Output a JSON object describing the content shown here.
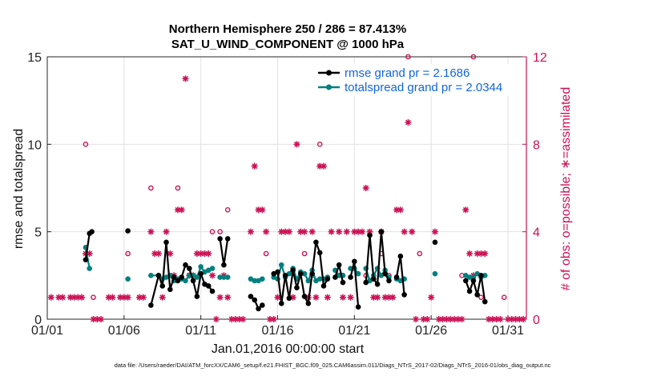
{
  "chart_data": {
    "type": "line",
    "title": "Northern Hemisphere 250 / 286 = 87.413%",
    "subtitle": "SAT_U_WIND_COMPONENT @ 1000 hPa",
    "xlabel": "Jan.01,2016 00:00:00 start",
    "ylabel": "rmse and totalspread",
    "ylabel_right": "# of obs: o=possible; ∗=assimilated",
    "footer": "data file: /Users/raeder/DAI/ATM_forcXX/CAM6_setup/f.e21.FHIST_BGC.f09_025.CAM6assim.011/Diags_NTrS_2017-02/Diags_NTrS_2016-01/obs_diag_output.nc",
    "xlim": [
      1,
      32.2
    ],
    "ylim": [
      0,
      15
    ],
    "ylim_right": [
      0,
      12
    ],
    "xtick_values": [
      1,
      6,
      11,
      16,
      21,
      26,
      31
    ],
    "xtick_labels": [
      "01/01",
      "01/06",
      "01/11",
      "01/16",
      "01/21",
      "01/26",
      "01/31"
    ],
    "ytick_labels": [
      "0",
      "5",
      "10",
      "15"
    ],
    "ytick_labels_right": [
      "0",
      "4",
      "8",
      "12"
    ],
    "grid": true,
    "legend_position": "top-right",
    "colors": {
      "rmse": "#000000",
      "spread": "#00807f",
      "obs": "#cc1155"
    },
    "series": [
      {
        "name": "rmse grand pr = 2.1686",
        "axis": "left",
        "segments": [
          [
            [
              3.5,
              3.4
            ],
            [
              3.75,
              4.9
            ],
            [
              3.9,
              5.0
            ]
          ],
          [
            [
              6.25,
              5.05
            ]
          ],
          [
            [
              7.75,
              0.8
            ],
            [
              8.25,
              2.5
            ],
            [
              8.5,
              1.9
            ],
            [
              8.75,
              4.4
            ],
            [
              9.0,
              1.7
            ],
            [
              9.25,
              2.4
            ],
            [
              9.5,
              2.2
            ],
            [
              9.75,
              2.4
            ],
            [
              10.0,
              3.1
            ],
            [
              10.25,
              2.9
            ],
            [
              10.5,
              2.2
            ],
            [
              10.75,
              1.3
            ],
            [
              11.0,
              2.6
            ],
            [
              11.25,
              2.0
            ],
            [
              11.5,
              1.9
            ],
            [
              11.75,
              1.6
            ]
          ],
          [
            [
              12.25,
              4.6
            ],
            [
              12.5,
              3.1
            ],
            [
              12.75,
              4.6
            ]
          ],
          [
            [
              14.25,
              1.3
            ],
            [
              14.5,
              1.1
            ],
            [
              14.75,
              0.6
            ],
            [
              15.0,
              0.8
            ]
          ],
          [
            [
              15.75,
              2.6
            ],
            [
              16.0,
              2.7
            ],
            [
              16.25,
              0.9
            ],
            [
              16.5,
              2.5
            ],
            [
              16.75,
              1.2
            ],
            [
              17.0,
              2.8
            ],
            [
              17.25,
              1.8
            ],
            [
              17.5,
              2.6
            ],
            [
              17.75,
              1.3
            ],
            [
              18.0,
              0.9
            ],
            [
              18.25,
              2.6
            ],
            [
              18.5,
              4.4
            ],
            [
              18.75,
              3.8
            ],
            [
              19.0,
              1.9
            ],
            [
              19.25,
              2.3
            ]
          ],
          [
            [
              19.75,
              2.4
            ],
            [
              20.0,
              3.1
            ],
            [
              20.25,
              2.1
            ]
          ],
          [
            [
              20.75,
              2.4
            ],
            [
              21.0,
              3.3
            ],
            [
              21.25,
              0.7
            ]
          ],
          [
            [
              21.75,
              2.1
            ],
            [
              22.0,
              4.8
            ],
            [
              22.25,
              2.3
            ],
            [
              22.5,
              2.0
            ],
            [
              22.75,
              5.0
            ],
            [
              23.0,
              2.6
            ],
            [
              23.25,
              2.2
            ]
          ],
          [
            [
              23.75,
              2.4
            ],
            [
              24.0,
              3.6
            ],
            [
              24.25,
              1.4
            ]
          ],
          [
            [
              26.25,
              4.4
            ]
          ],
          [
            [
              28.25,
              2.2
            ],
            [
              28.5,
              1.6
            ],
            [
              28.75,
              2.2
            ],
            [
              29.0,
              1.4
            ],
            [
              29.25,
              2.5
            ],
            [
              29.5,
              1.0
            ]
          ]
        ]
      },
      {
        "name": "totalspread grand pr = 2.0344",
        "axis": "left",
        "segments": [
          [
            [
              3.5,
              4.1
            ],
            [
              3.75,
              2.9
            ]
          ],
          [
            [
              6.25,
              2.3
            ]
          ],
          [
            [
              7.75,
              2.5
            ],
            [
              8.25,
              2.5
            ],
            [
              8.5,
              2.3
            ],
            [
              8.75,
              2.4
            ],
            [
              9.0,
              2.5
            ],
            [
              9.25,
              2.2
            ],
            [
              9.5,
              2.3
            ],
            [
              9.75,
              2.3
            ],
            [
              10.0,
              2.2
            ],
            [
              10.25,
              2.5
            ],
            [
              10.5,
              2.5
            ],
            [
              10.75,
              2.4
            ],
            [
              11.0,
              3.0
            ],
            [
              11.25,
              2.7
            ],
            [
              11.5,
              2.8
            ],
            [
              11.75,
              2.9
            ]
          ],
          [
            [
              12.25,
              2.4
            ],
            [
              12.5,
              2.4
            ],
            [
              12.75,
              2.4
            ]
          ],
          [
            [
              14.25,
              2.3
            ],
            [
              14.5,
              2.2
            ],
            [
              14.75,
              2.2
            ],
            [
              15.0,
              2.3
            ]
          ],
          [
            [
              15.75,
              2.4
            ],
            [
              16.0,
              2.3
            ],
            [
              16.25,
              3.1
            ],
            [
              16.5,
              2.4
            ],
            [
              16.75,
              2.6
            ],
            [
              17.0,
              2.9
            ],
            [
              17.25,
              2.3
            ],
            [
              17.5,
              2.7
            ],
            [
              17.75,
              2.6
            ],
            [
              18.0,
              2.2
            ],
            [
              18.25,
              2.8
            ],
            [
              18.5,
              2.2
            ],
            [
              18.75,
              2.3
            ],
            [
              19.0,
              2.3
            ],
            [
              19.25,
              2.4
            ]
          ],
          [
            [
              19.75,
              2.8
            ],
            [
              20.0,
              2.5
            ],
            [
              20.25,
              2.5
            ]
          ],
          [
            [
              20.75,
              2.9
            ],
            [
              21.0,
              2.9
            ],
            [
              21.25,
              2.6
            ]
          ],
          [
            [
              21.75,
              2.9
            ],
            [
              22.0,
              2.2
            ],
            [
              22.25,
              2.5
            ],
            [
              22.5,
              2.9
            ],
            [
              22.75,
              2.5
            ],
            [
              23.0,
              2.8
            ],
            [
              23.25,
              2.4
            ]
          ],
          [
            [
              23.75,
              2.3
            ],
            [
              24.0,
              2.2
            ],
            [
              24.25,
              2.3
            ]
          ],
          [
            [
              26.25,
              2.6
            ]
          ],
          [
            [
              28.25,
              2.5
            ],
            [
              28.5,
              2.4
            ],
            [
              28.75,
              2.4
            ],
            [
              29.0,
              2.6
            ],
            [
              29.25,
              2.4
            ],
            [
              29.5,
              2.5
            ]
          ]
        ]
      },
      {
        "name": "obs possible",
        "axis": "right",
        "marker": "circle",
        "points": [
          [
            3.5,
            8
          ],
          [
            4.0,
            1
          ],
          [
            6.25,
            3
          ],
          [
            7.75,
            6
          ],
          [
            9.5,
            6
          ],
          [
            11.75,
            4
          ],
          [
            12.25,
            4
          ],
          [
            12.75,
            5
          ],
          [
            15.25,
            3
          ],
          [
            17.75,
            3
          ],
          [
            18.25,
            2
          ],
          [
            18.75,
            8
          ],
          [
            20.25,
            2
          ],
          [
            21.75,
            2
          ],
          [
            22.75,
            3
          ],
          [
            23.25,
            2
          ],
          [
            24.5,
            12
          ],
          [
            25.25,
            3
          ],
          [
            28.0,
            2
          ],
          [
            28.75,
            12
          ],
          [
            29.25,
            1
          ],
          [
            30.75,
            1
          ]
        ]
      },
      {
        "name": "obs assimilated",
        "axis": "right",
        "marker": "asterisk",
        "points": [
          [
            1.25,
            1
          ],
          [
            1.75,
            1
          ],
          [
            2.0,
            1
          ],
          [
            2.5,
            1
          ],
          [
            2.75,
            1
          ],
          [
            3.0,
            1
          ],
          [
            3.25,
            1
          ],
          [
            3.5,
            3
          ],
          [
            3.75,
            3
          ],
          [
            4.0,
            0
          ],
          [
            4.25,
            0
          ],
          [
            4.5,
            0
          ],
          [
            5.0,
            1
          ],
          [
            5.25,
            1
          ],
          [
            5.75,
            1
          ],
          [
            6.0,
            1
          ],
          [
            6.25,
            1
          ],
          [
            7.0,
            1
          ],
          [
            7.25,
            1
          ],
          [
            7.75,
            4
          ],
          [
            8.0,
            3
          ],
          [
            8.25,
            3
          ],
          [
            8.5,
            1
          ],
          [
            8.75,
            4
          ],
          [
            9.0,
            3
          ],
          [
            9.25,
            2
          ],
          [
            9.5,
            5
          ],
          [
            9.75,
            5
          ],
          [
            10.0,
            11
          ],
          [
            10.25,
            2
          ],
          [
            10.5,
            2
          ],
          [
            10.75,
            3
          ],
          [
            11.0,
            3
          ],
          [
            11.25,
            3
          ],
          [
            11.5,
            3
          ],
          [
            11.75,
            2
          ],
          [
            12.0,
            0
          ],
          [
            12.25,
            1
          ],
          [
            12.5,
            2
          ],
          [
            12.75,
            1
          ],
          [
            13.0,
            0
          ],
          [
            13.25,
            0
          ],
          [
            13.5,
            0
          ],
          [
            13.75,
            0
          ],
          [
            14.25,
            4
          ],
          [
            14.5,
            7
          ],
          [
            14.75,
            5
          ],
          [
            15.0,
            5
          ],
          [
            15.25,
            4
          ],
          [
            15.5,
            0
          ],
          [
            15.75,
            0
          ],
          [
            16.0,
            1
          ],
          [
            16.25,
            4
          ],
          [
            16.5,
            4
          ],
          [
            16.75,
            4
          ],
          [
            17.0,
            1
          ],
          [
            17.25,
            8
          ],
          [
            17.5,
            4
          ],
          [
            17.75,
            4
          ],
          [
            18.0,
            1
          ],
          [
            18.25,
            4
          ],
          [
            18.5,
            1
          ],
          [
            18.75,
            7
          ],
          [
            19.0,
            7
          ],
          [
            19.25,
            1
          ],
          [
            19.5,
            4
          ],
          [
            20.0,
            4
          ],
          [
            20.25,
            1
          ],
          [
            20.5,
            4
          ],
          [
            20.75,
            1
          ],
          [
            21.0,
            4
          ],
          [
            21.25,
            4
          ],
          [
            21.5,
            4
          ],
          [
            21.75,
            6
          ],
          [
            22.0,
            4
          ],
          [
            22.25,
            1
          ],
          [
            22.5,
            1
          ],
          [
            22.75,
            4
          ],
          [
            23.0,
            1
          ],
          [
            23.25,
            1
          ],
          [
            23.5,
            1
          ],
          [
            23.75,
            5
          ],
          [
            24.0,
            5
          ],
          [
            24.25,
            4
          ],
          [
            24.5,
            9
          ],
          [
            24.75,
            4
          ],
          [
            25.0,
            0
          ],
          [
            25.5,
            0
          ],
          [
            25.75,
            0
          ],
          [
            26.0,
            1
          ],
          [
            26.25,
            4
          ],
          [
            26.5,
            0
          ],
          [
            26.75,
            0
          ],
          [
            27.0,
            0
          ],
          [
            27.25,
            0
          ],
          [
            27.5,
            0
          ],
          [
            27.75,
            0
          ],
          [
            28.0,
            0
          ],
          [
            28.25,
            5
          ],
          [
            28.5,
            3
          ],
          [
            28.75,
            2
          ],
          [
            29.0,
            3
          ],
          [
            29.25,
            3
          ],
          [
            29.5,
            3
          ],
          [
            29.75,
            0
          ],
          [
            30.0,
            0
          ],
          [
            30.25,
            0
          ],
          [
            30.5,
            0
          ],
          [
            31.0,
            0
          ],
          [
            31.25,
            0
          ],
          [
            31.5,
            0
          ],
          [
            31.75,
            0
          ],
          [
            32.0,
            0
          ]
        ]
      }
    ]
  }
}
